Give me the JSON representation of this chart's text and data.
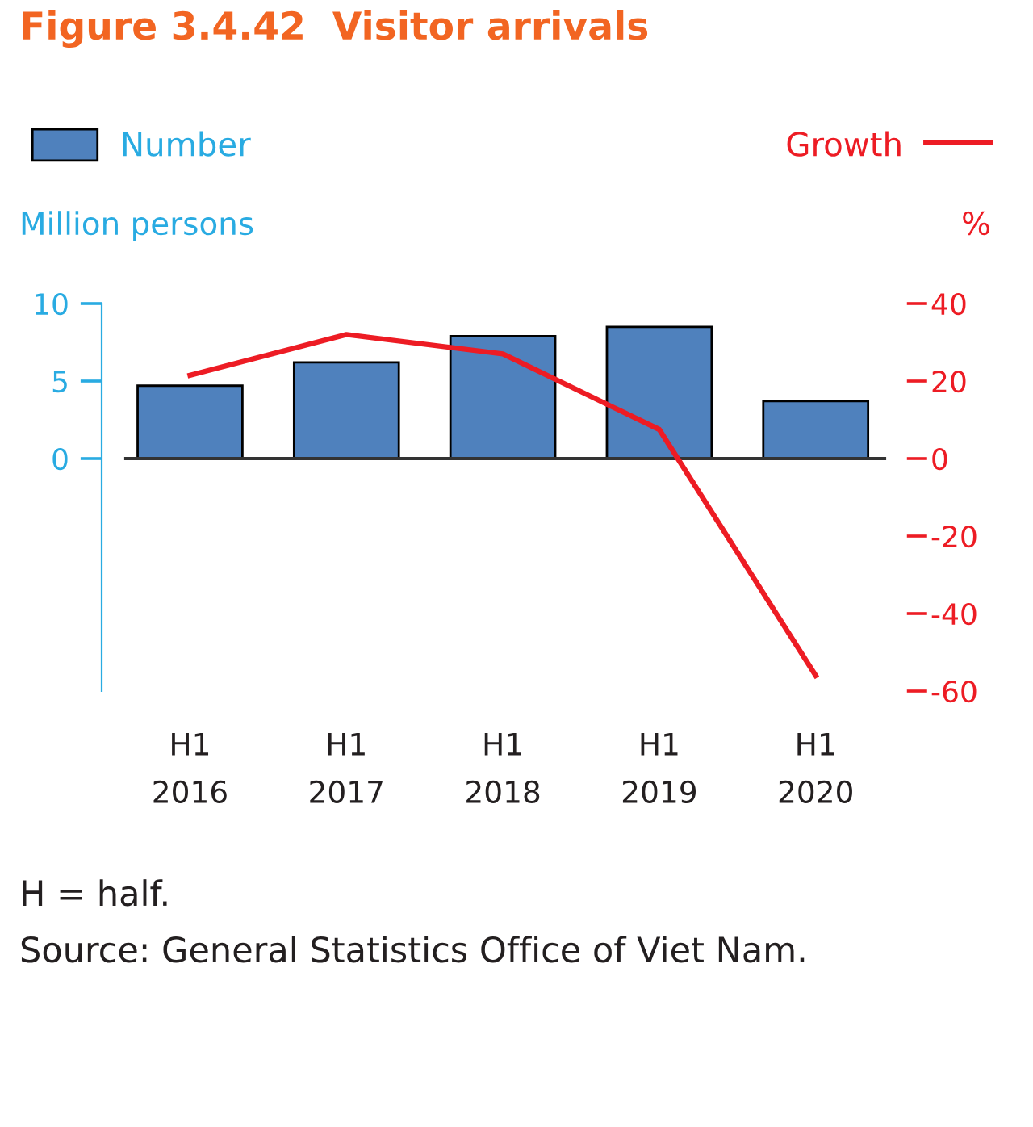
{
  "chart_data": {
    "type": "bar",
    "title": "Figure 3.4.42  Visitor arrivals",
    "ylabel": "Million persons",
    "y2label": "%",
    "categories": [
      "H1\n2016",
      "H1\n2017",
      "H1\n2018",
      "H1\n2019",
      "H1\n2020"
    ],
    "series": [
      {
        "name": "Number",
        "color": "#4f81bd",
        "values": [
          4.7,
          6.2,
          7.9,
          8.5,
          3.7
        ]
      },
      {
        "name": "Growth",
        "type": "line",
        "axis": "y2",
        "color": "#ed1c24",
        "values": [
          21.5,
          32,
          27,
          7.5,
          -56
        ]
      }
    ],
    "ylim": [
      -15,
      10
    ],
    "yticks": [
      0,
      5,
      10
    ],
    "y2lim": [
      -60,
      40
    ],
    "y2ticks": [
      -60,
      -40,
      -20,
      0,
      20,
      40
    ],
    "legend": "top",
    "annotations": [
      "H = half.",
      "Source: General Statistics Office of Viet Nam."
    ]
  }
}
